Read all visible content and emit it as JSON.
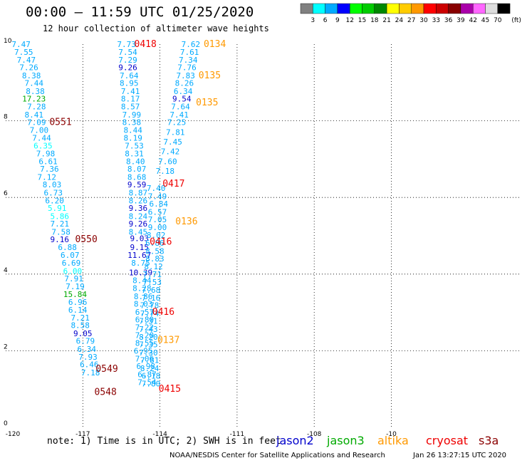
{
  "header": {
    "title": "00:00 – 11:59 UTC 01/25/2020",
    "subtitle": "12 hour collection of altimeter wave heights"
  },
  "footer": {
    "note": "note:  1) Time is in UTC;  2) SWH is in feet",
    "credit": "NOAA/NESDIS Center for Satellite Applications and Research",
    "timestamp": "Jan 26 13:27:15 UTC 2020"
  },
  "satellites": [
    {
      "name": "jason2",
      "color": "#0000cc"
    },
    {
      "name": "jason3",
      "color": "#00aa00"
    },
    {
      "name": "altika",
      "color": "#ff9900"
    },
    {
      "name": "cryosat",
      "color": "#ee0000"
    },
    {
      "name": "s3a",
      "color": "#8b0000"
    }
  ],
  "colorbar": {
    "labels": [
      "3",
      "6",
      "9",
      "12",
      "15",
      "18",
      "21",
      "24",
      "27",
      "30",
      "33",
      "36",
      "39",
      "42",
      "45",
      "70"
    ],
    "unit": "(ft)",
    "colors": [
      "#808080",
      "#00ffff",
      "#00aaff",
      "#0000ff",
      "#00ff00",
      "#00cc00",
      "#008800",
      "#ffff00",
      "#ffcc00",
      "#ff9900",
      "#ff0000",
      "#cc0000",
      "#880000",
      "#aa00aa",
      "#ff66ff",
      "#dddddd",
      "#000000"
    ]
  },
  "chart_data": {
    "type": "scatter",
    "xlim": [
      -120,
      -100
    ],
    "ylim": [
      0,
      10
    ],
    "xticks": [
      "-120",
      "-117",
      "-114",
      "-111",
      "-108",
      "-10"
    ],
    "yticks": [
      "0",
      "2",
      "4",
      "6",
      "8",
      "10"
    ],
    "grid": true,
    "series": [
      {
        "track": "west",
        "points": [
          {
            "x": -119.4,
            "y": 9.93,
            "v": "7.47",
            "c": "#00aaff"
          },
          {
            "x": -119.3,
            "y": 9.72,
            "v": "7.55",
            "c": "#00aaff"
          },
          {
            "x": -119.2,
            "y": 9.52,
            "v": "7.47",
            "c": "#00aaff"
          },
          {
            "x": -119.1,
            "y": 9.32,
            "v": "7.26",
            "c": "#00aaff"
          },
          {
            "x": -119.0,
            "y": 9.11,
            "v": "8.38",
            "c": "#00aaff"
          },
          {
            "x": -118.9,
            "y": 8.91,
            "v": "7.44",
            "c": "#00aaff"
          },
          {
            "x": -118.85,
            "y": 8.7,
            "v": "8.38",
            "c": "#00aaff"
          },
          {
            "x": -118.9,
            "y": 8.5,
            "v": "17.23",
            "c": "#00aa00"
          },
          {
            "x": -118.8,
            "y": 8.3,
            "v": "7.28",
            "c": "#00aaff"
          },
          {
            "x": -118.9,
            "y": 8.09,
            "v": "8.41",
            "c": "#00aaff"
          },
          {
            "x": -118.8,
            "y": 7.89,
            "v": "7.09",
            "c": "#00aaff"
          },
          {
            "x": -118.7,
            "y": 7.69,
            "v": "7.00",
            "c": "#00aaff"
          },
          {
            "x": -118.6,
            "y": 7.48,
            "v": "7.44",
            "c": "#00aaff"
          },
          {
            "x": -118.55,
            "y": 7.28,
            "v": "6.35",
            "c": "#00ffff"
          },
          {
            "x": -118.45,
            "y": 7.07,
            "v": "7.98",
            "c": "#00aaff"
          },
          {
            "x": -118.35,
            "y": 6.87,
            "v": "6.61",
            "c": "#00aaff"
          },
          {
            "x": -118.3,
            "y": 6.67,
            "v": "7.36",
            "c": "#00aaff"
          },
          {
            "x": -118.4,
            "y": 6.46,
            "v": "7.12",
            "c": "#00aaff"
          },
          {
            "x": -118.2,
            "y": 6.26,
            "v": "8.03",
            "c": "#00aaff"
          },
          {
            "x": -118.15,
            "y": 6.05,
            "v": "6.73",
            "c": "#00aaff"
          },
          {
            "x": -118.1,
            "y": 5.85,
            "v": "6.20",
            "c": "#00aaff"
          },
          {
            "x": -118.0,
            "y": 5.65,
            "v": "5.91",
            "c": "#00ffff"
          },
          {
            "x": -117.9,
            "y": 5.44,
            "v": "5.86",
            "c": "#00ffff"
          },
          {
            "x": -117.9,
            "y": 5.24,
            "v": "7.21",
            "c": "#00aaff"
          },
          {
            "x": -117.85,
            "y": 5.03,
            "v": "7.58",
            "c": "#00aaff"
          },
          {
            "x": -117.9,
            "y": 4.83,
            "v": "9.16",
            "c": "#0000cc"
          },
          {
            "x": -117.6,
            "y": 4.63,
            "v": "6.88",
            "c": "#00aaff"
          },
          {
            "x": -117.5,
            "y": 4.42,
            "v": "6.07",
            "c": "#00aaff"
          },
          {
            "x": -117.45,
            "y": 4.22,
            "v": "6.69",
            "c": "#00aaff"
          },
          {
            "x": -117.4,
            "y": 4.01,
            "v": "6.00",
            "c": "#00ffff"
          },
          {
            "x": -117.35,
            "y": 3.81,
            "v": "7.91",
            "c": "#00aaff"
          },
          {
            "x": -117.3,
            "y": 3.61,
            "v": "7.19",
            "c": "#00aaff"
          },
          {
            "x": -117.3,
            "y": 3.4,
            "v": "15.84",
            "c": "#00aa00"
          },
          {
            "x": -117.2,
            "y": 3.2,
            "v": "6.96",
            "c": "#00aaff"
          },
          {
            "x": -117.2,
            "y": 2.99,
            "v": "6.14",
            "c": "#00aaff"
          },
          {
            "x": -117.1,
            "y": 2.79,
            "v": "7.21",
            "c": "#00aaff"
          },
          {
            "x": -117.1,
            "y": 2.59,
            "v": "8.58",
            "c": "#00aaff"
          },
          {
            "x": -117.0,
            "y": 2.38,
            "v": "9.05",
            "c": "#0000cc"
          },
          {
            "x": -116.9,
            "y": 2.18,
            "v": "6.79",
            "c": "#00aaff"
          },
          {
            "x": -116.85,
            "y": 1.97,
            "v": "6.34",
            "c": "#00aaff"
          },
          {
            "x": -116.8,
            "y": 1.77,
            "v": "7.93",
            "c": "#00aaff"
          },
          {
            "x": -116.75,
            "y": 1.57,
            "v": "6.46",
            "c": "#00aaff"
          },
          {
            "x": -116.7,
            "y": 1.36,
            "v": "7.18",
            "c": "#00aaff"
          }
        ]
      },
      {
        "track": "middle",
        "points": [
          {
            "x": -115.3,
            "y": 9.93,
            "v": "7.73",
            "c": "#00aaff"
          },
          {
            "x": -115.25,
            "y": 9.72,
            "v": "7.54",
            "c": "#00aaff"
          },
          {
            "x": -115.25,
            "y": 9.52,
            "v": "7.29",
            "c": "#00aaff"
          },
          {
            "x": -115.25,
            "y": 9.32,
            "v": "9.26",
            "c": "#0000cc"
          },
          {
            "x": -115.2,
            "y": 9.11,
            "v": "7.64",
            "c": "#00aaff"
          },
          {
            "x": -115.2,
            "y": 8.91,
            "v": "8.95",
            "c": "#00aaff"
          },
          {
            "x": -115.15,
            "y": 8.7,
            "v": "7.41",
            "c": "#00aaff"
          },
          {
            "x": -115.15,
            "y": 8.5,
            "v": "8.17",
            "c": "#00aaff"
          },
          {
            "x": -115.15,
            "y": 8.3,
            "v": "8.57",
            "c": "#00aaff"
          },
          {
            "x": -115.1,
            "y": 8.09,
            "v": "7.99",
            "c": "#00aaff"
          },
          {
            "x": -115.1,
            "y": 7.89,
            "v": "8.38",
            "c": "#00aaff"
          },
          {
            "x": -115.05,
            "y": 7.69,
            "v": "8.44",
            "c": "#00aaff"
          },
          {
            "x": -115.05,
            "y": 7.48,
            "v": "8.19",
            "c": "#00aaff"
          },
          {
            "x": -115.0,
            "y": 7.28,
            "v": "7.53",
            "c": "#00aaff"
          },
          {
            "x": -115.0,
            "y": 7.07,
            "v": "8.31",
            "c": "#00aaff"
          },
          {
            "x": -114.95,
            "y": 6.87,
            "v": "8.40",
            "c": "#00aaff"
          },
          {
            "x": -114.9,
            "y": 6.67,
            "v": "8.07",
            "c": "#00aaff"
          },
          {
            "x": -114.9,
            "y": 6.46,
            "v": "8.68",
            "c": "#00aaff"
          },
          {
            "x": -114.9,
            "y": 6.26,
            "v": "9.59",
            "c": "#0000cc"
          },
          {
            "x": -114.85,
            "y": 6.05,
            "v": "8.87",
            "c": "#00aaff"
          },
          {
            "x": -114.85,
            "y": 5.85,
            "v": "8.26",
            "c": "#00aaff"
          },
          {
            "x": -114.85,
            "y": 5.65,
            "v": "9.36",
            "c": "#0000cc"
          },
          {
            "x": -114.85,
            "y": 5.44,
            "v": "8.24",
            "c": "#00aaff"
          },
          {
            "x": -114.85,
            "y": 5.24,
            "v": "9.26",
            "c": "#0000cc"
          },
          {
            "x": -114.85,
            "y": 5.03,
            "v": "8.45",
            "c": "#00aaff"
          },
          {
            "x": -114.8,
            "y": 4.86,
            "v": "9.03",
            "c": "#0000cc"
          },
          {
            "x": -114.8,
            "y": 4.63,
            "v": "9.15",
            "c": "#0000cc"
          },
          {
            "x": -114.8,
            "y": 4.42,
            "v": "11.67",
            "c": "#0000cc"
          },
          {
            "x": -114.75,
            "y": 4.22,
            "v": "8.75",
            "c": "#00aaff"
          },
          {
            "x": -114.75,
            "y": 3.97,
            "v": "10.39",
            "c": "#0000cc"
          },
          {
            "x": -114.7,
            "y": 3.76,
            "v": "8.44",
            "c": "#00aaff"
          },
          {
            "x": -114.7,
            "y": 3.56,
            "v": "8.28",
            "c": "#00aaff"
          },
          {
            "x": -114.65,
            "y": 3.35,
            "v": "8.86",
            "c": "#00aaff"
          },
          {
            "x": -114.65,
            "y": 3.15,
            "v": "8.03",
            "c": "#00aaff"
          },
          {
            "x": -114.6,
            "y": 2.94,
            "v": "6.57",
            "c": "#00aaff"
          },
          {
            "x": -114.6,
            "y": 2.74,
            "v": "6.80",
            "c": "#00aaff"
          },
          {
            "x": -114.6,
            "y": 2.54,
            "v": "7.22",
            "c": "#00aaff"
          },
          {
            "x": -114.6,
            "y": 2.33,
            "v": "7.20",
            "c": "#00aaff"
          },
          {
            "x": -114.6,
            "y": 2.13,
            "v": "8.55",
            "c": "#00aaff"
          },
          {
            "x": -114.65,
            "y": 1.92,
            "v": "6.95",
            "c": "#00aaff"
          },
          {
            "x": -114.6,
            "y": 1.72,
            "v": "7.06",
            "c": "#00aaff"
          },
          {
            "x": -114.55,
            "y": 1.52,
            "v": "6.98",
            "c": "#00aaff"
          },
          {
            "x": -114.5,
            "y": 1.31,
            "v": "6.87",
            "c": "#00aaff"
          },
          {
            "x": -114.5,
            "y": 1.11,
            "v": "7.54",
            "c": "#00aaff"
          }
        ]
      },
      {
        "track": "middle-east",
        "points": [
          {
            "x": -114.15,
            "y": 6.17,
            "v": "7.40",
            "c": "#00aaff"
          },
          {
            "x": -114.1,
            "y": 5.96,
            "v": "7.49",
            "c": "#00aaff"
          },
          {
            "x": -114.05,
            "y": 5.76,
            "v": "6.84",
            "c": "#00aaff"
          },
          {
            "x": -114.1,
            "y": 5.55,
            "v": "6.57",
            "c": "#00aaff"
          },
          {
            "x": -114.1,
            "y": 5.35,
            "v": "7.05",
            "c": "#00aaff"
          },
          {
            "x": -114.1,
            "y": 5.15,
            "v": "9.00",
            "c": "#00aaff"
          },
          {
            "x": -114.15,
            "y": 4.94,
            "v": "8.02",
            "c": "#00aaff"
          },
          {
            "x": -114.2,
            "y": 4.74,
            "v": "6.86",
            "c": "#00aaff"
          },
          {
            "x": -114.2,
            "y": 4.53,
            "v": "8.58",
            "c": "#00aaff"
          },
          {
            "x": -114.2,
            "y": 4.33,
            "v": "8.83",
            "c": "#00aaff"
          },
          {
            "x": -114.25,
            "y": 4.13,
            "v": "8.12",
            "c": "#00aaff"
          },
          {
            "x": -114.3,
            "y": 3.92,
            "v": "7.71",
            "c": "#00aaff"
          },
          {
            "x": -114.3,
            "y": 3.72,
            "v": "7.53",
            "c": "#00aaff"
          },
          {
            "x": -114.35,
            "y": 3.51,
            "v": "7.68",
            "c": "#00aaff"
          },
          {
            "x": -114.35,
            "y": 3.31,
            "v": "7.16",
            "c": "#00aaff"
          },
          {
            "x": -114.4,
            "y": 3.11,
            "v": "7.78",
            "c": "#00aaff"
          },
          {
            "x": -114.4,
            "y": 2.9,
            "v": "7.74",
            "c": "#00aaff"
          },
          {
            "x": -114.45,
            "y": 2.7,
            "v": "7.31",
            "c": "#00aaff"
          },
          {
            "x": -114.45,
            "y": 2.49,
            "v": "7.43",
            "c": "#00aaff"
          },
          {
            "x": -114.45,
            "y": 2.29,
            "v": "8.20",
            "c": "#00aaff"
          },
          {
            "x": -114.45,
            "y": 2.09,
            "v": "7.35",
            "c": "#00aaff"
          },
          {
            "x": -114.45,
            "y": 1.88,
            "v": "7.30",
            "c": "#00aaff"
          },
          {
            "x": -114.4,
            "y": 1.68,
            "v": "7.81",
            "c": "#00aaff"
          },
          {
            "x": -114.4,
            "y": 1.47,
            "v": "8.24",
            "c": "#00aaff"
          },
          {
            "x": -114.35,
            "y": 1.27,
            "v": "6.18",
            "c": "#00aaff"
          },
          {
            "x": -114.35,
            "y": 1.07,
            "v": "7.80",
            "c": "#00aaff"
          }
        ]
      },
      {
        "track": "east",
        "points": [
          {
            "x": -112.8,
            "y": 9.93,
            "v": "7.62",
            "c": "#00aaff"
          },
          {
            "x": -112.85,
            "y": 9.72,
            "v": "7.61",
            "c": "#00aaff"
          },
          {
            "x": -112.9,
            "y": 9.52,
            "v": "7.34",
            "c": "#00aaff"
          },
          {
            "x": -112.95,
            "y": 9.32,
            "v": "7.76",
            "c": "#00aaff"
          },
          {
            "x": -113.0,
            "y": 9.11,
            "v": "7.83",
            "c": "#00aaff"
          },
          {
            "x": -113.05,
            "y": 8.91,
            "v": "8.26",
            "c": "#00aaff"
          },
          {
            "x": -113.1,
            "y": 8.7,
            "v": "6.34",
            "c": "#00aaff"
          },
          {
            "x": -113.15,
            "y": 8.5,
            "v": "9.54",
            "c": "#0000cc"
          },
          {
            "x": -113.2,
            "y": 8.3,
            "v": "7.64",
            "c": "#00aaff"
          },
          {
            "x": -113.25,
            "y": 8.09,
            "v": "7.41",
            "c": "#00aaff"
          },
          {
            "x": -113.35,
            "y": 7.89,
            "v": "7.25",
            "c": "#00aaff"
          },
          {
            "x": -113.4,
            "y": 7.63,
            "v": "7.81",
            "c": "#00aaff"
          },
          {
            "x": -113.5,
            "y": 7.38,
            "v": "7.45",
            "c": "#00aaff"
          },
          {
            "x": -113.6,
            "y": 7.13,
            "v": "7.42",
            "c": "#00aaff"
          },
          {
            "x": -113.7,
            "y": 6.87,
            "v": "7.60",
            "c": "#00aaff"
          },
          {
            "x": -113.8,
            "y": 6.62,
            "v": "7.18",
            "c": "#00aaff"
          }
        ]
      }
    ],
    "time_labels": [
      {
        "x": -112.3,
        "y": 9.93,
        "text": "0134",
        "c": "#ff9900"
      },
      {
        "x": -115.0,
        "y": 9.93,
        "text": "0418",
        "c": "#ee0000"
      },
      {
        "x": -112.5,
        "y": 9.11,
        "text": "0135",
        "c": "#ff9900"
      },
      {
        "x": -112.6,
        "y": 8.4,
        "text": "0135",
        "c": "#ff9900"
      },
      {
        "x": -118.3,
        "y": 7.89,
        "text": "0551",
        "c": "#8b0000"
      },
      {
        "x": -113.9,
        "y": 6.28,
        "text": "0417",
        "c": "#ee0000"
      },
      {
        "x": -113.4,
        "y": 5.3,
        "text": "0136",
        "c": "#ff9900"
      },
      {
        "x": -117.3,
        "y": 4.83,
        "text": "0550",
        "c": "#8b0000"
      },
      {
        "x": -114.4,
        "y": 4.77,
        "text": "0416",
        "c": "#ee0000"
      },
      {
        "x": -114.3,
        "y": 2.94,
        "text": "0416",
        "c": "#ee0000"
      },
      {
        "x": -114.1,
        "y": 2.2,
        "text": "0137",
        "c": "#ff9900"
      },
      {
        "x": -116.5,
        "y": 1.45,
        "text": "0549",
        "c": "#8b0000"
      },
      {
        "x": -114.05,
        "y": 0.93,
        "text": "0415",
        "c": "#ee0000"
      },
      {
        "x": -116.55,
        "y": 0.85,
        "text": "0548",
        "c": "#8b0000"
      }
    ]
  }
}
